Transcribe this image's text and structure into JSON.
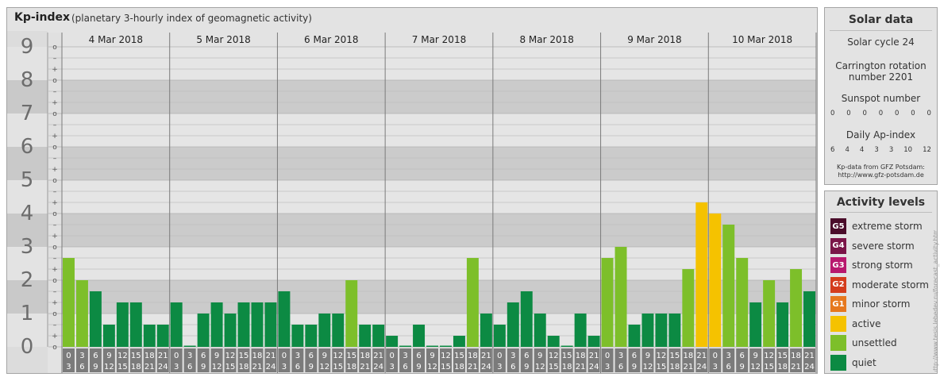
{
  "header": {
    "title": "Kp-index",
    "subtitle": "(planetary 3-hourly index of geomagnetic activity)"
  },
  "chart_data": {
    "type": "bar",
    "y_range": [
      0,
      9
    ],
    "y_major_labels": [
      "0",
      "1",
      "2",
      "3",
      "4",
      "5",
      "6",
      "7",
      "8",
      "9"
    ],
    "y_minor_labels": [
      "o",
      "+",
      "–",
      "o",
      "+",
      "–",
      "o",
      "+",
      "–",
      "o",
      "+",
      "–",
      "o",
      "+",
      "–",
      "o",
      "+",
      "–",
      "o",
      "+",
      "–",
      "o",
      "+",
      "–",
      "o",
      "+",
      "–",
      "o"
    ],
    "days": [
      "4 Mar 2018",
      "5 Mar 2018",
      "6 Mar 2018",
      "7 Mar 2018",
      "8 Mar 2018",
      "9 Mar 2018",
      "10 Mar 2018"
    ],
    "interval_labels": [
      [
        "0",
        "3"
      ],
      [
        "3",
        "6"
      ],
      [
        "6",
        "9"
      ],
      [
        "9",
        "12"
      ],
      [
        "12",
        "15"
      ],
      [
        "15",
        "18"
      ],
      [
        "18",
        "21"
      ],
      [
        "21",
        "24"
      ]
    ],
    "values": [
      2.667,
      2.0,
      1.667,
      0.667,
      1.333,
      1.333,
      0.667,
      0.667,
      1.333,
      0.0,
      1.0,
      1.333,
      1.0,
      1.333,
      1.333,
      1.333,
      1.667,
      0.667,
      0.667,
      1.0,
      1.0,
      2.0,
      0.667,
      0.667,
      0.333,
      0.0,
      0.667,
      0.0,
      0.0,
      0.333,
      2.667,
      1.0,
      0.667,
      1.333,
      1.667,
      1.0,
      0.333,
      0.0,
      1.0,
      0.333,
      2.667,
      3.0,
      0.667,
      1.0,
      1.0,
      1.0,
      2.333,
      4.333,
      4.0,
      3.667,
      2.667,
      1.333,
      2.0,
      1.333,
      2.333,
      1.667
    ],
    "grid": true
  },
  "solar": {
    "heading": "Solar data",
    "cycle": "Solar cycle 24",
    "carrington_line1": "Carrington rotation",
    "carrington_line2": "number 2201",
    "sunspot_heading": "Sunspot number",
    "sunspot_values": [
      "0",
      "0",
      "0",
      "0",
      "0",
      "0",
      "0"
    ],
    "ap_heading": "Daily Ap-index",
    "ap_values": [
      "6",
      "4",
      "4",
      "3",
      "3",
      "10",
      "12"
    ],
    "credit_line1": "Kp-data from GFZ Potsdam:",
    "credit_line2": "http://www.gfz-potsdam.de"
  },
  "activity": {
    "heading": "Activity levels",
    "levels": [
      {
        "code": "G5",
        "label": "extreme storm",
        "color": "#4a0c2a"
      },
      {
        "code": "G4",
        "label": "severe storm",
        "color": "#7a1548"
      },
      {
        "code": "G3",
        "label": "strong storm",
        "color": "#b8186e"
      },
      {
        "code": "G2",
        "label": "moderate storm",
        "color": "#d43c1c"
      },
      {
        "code": "G1",
        "label": "minor storm",
        "color": "#e6781e"
      },
      {
        "code": "",
        "label": "active",
        "color": "#f5c200"
      },
      {
        "code": "",
        "label": "unsettled",
        "color": "#7dbf2a"
      },
      {
        "code": "",
        "label": "quiet",
        "color": "#0c8a43"
      }
    ]
  },
  "colors": {
    "quiet": "#0c8a43",
    "unsettled": "#7dbf2a",
    "active": "#f5c200"
  },
  "watermark": "http://www.tesis.lebedev.ru/forecast_activity.html"
}
